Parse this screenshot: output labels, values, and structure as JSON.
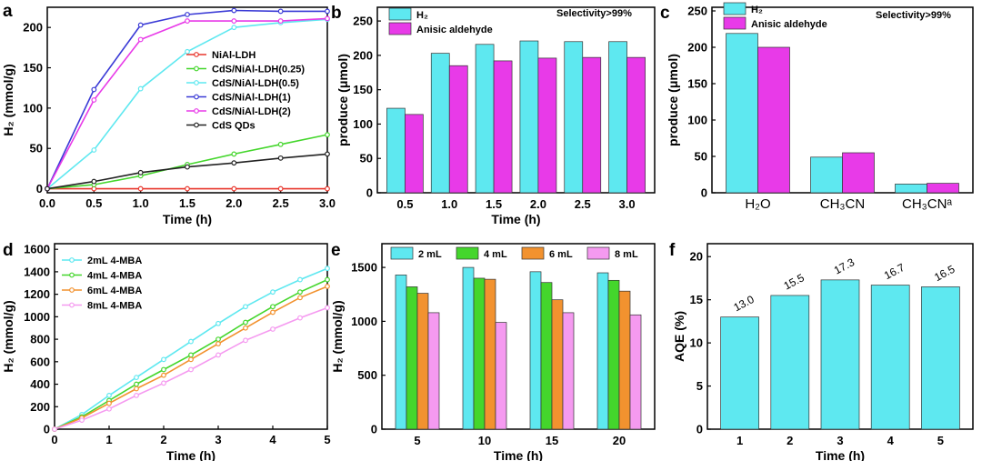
{
  "panels": {
    "a": {
      "label": "a"
    },
    "b": {
      "label": "b"
    },
    "c": {
      "label": "c"
    },
    "d": {
      "label": "d"
    },
    "e": {
      "label": "e"
    },
    "f": {
      "label": "f"
    }
  },
  "colors": {
    "red": "#e8372d",
    "green": "#44d62c",
    "cyan": "#5ee8f0",
    "blue": "#3a3ad6",
    "magenta": "#e83ae8",
    "black": "#222222",
    "orange": "#f2922f",
    "pink": "#f59af0"
  },
  "chart_data": [
    {
      "id": "a",
      "type": "line",
      "xlabel": "Time (h)",
      "ylabel": "H₂ (mmol/g)",
      "xlim": [
        0,
        3
      ],
      "ylim": [
        -5,
        225
      ],
      "xticks": [
        "0.0",
        "0.5",
        "1.0",
        "1.5",
        "2.0",
        "2.5",
        "3.0"
      ],
      "yticks": [
        "0",
        "50",
        "100",
        "150",
        "200"
      ],
      "x": [
        0,
        0.5,
        1.0,
        1.5,
        2.0,
        2.5,
        3.0
      ],
      "series": [
        {
          "name": "NiAl-LDH",
          "color": "#e8372d",
          "values": [
            0,
            0,
            0,
            0,
            0,
            0,
            0
          ]
        },
        {
          "name": "CdS/NiAl-LDH(0.25)",
          "color": "#44d62c",
          "values": [
            0,
            5,
            16,
            30,
            43,
            55,
            67
          ]
        },
        {
          "name": "CdS/NiAl-LDH(0.5)",
          "color": "#5ee8f0",
          "values": [
            0,
            48,
            124,
            170,
            200,
            206,
            210
          ]
        },
        {
          "name": "CdS/NiAl-LDH(1)",
          "color": "#3a3ad6",
          "values": [
            0,
            123,
            203,
            216,
            221,
            220,
            220
          ]
        },
        {
          "name": "CdS/NiAl-LDH(2)",
          "color": "#e83ae8",
          "values": [
            0,
            110,
            185,
            208,
            208,
            208,
            211
          ]
        },
        {
          "name": "CdS QDs",
          "color": "#222222",
          "values": [
            0,
            9,
            20,
            27,
            32,
            38,
            43
          ]
        }
      ]
    },
    {
      "id": "b",
      "type": "bar",
      "title": "Selectivity>99%",
      "xlabel": "Time (h)",
      "ylabel": "produce (μmol)",
      "ylim": [
        0,
        270
      ],
      "yticks": [
        "0",
        "50",
        "100",
        "150",
        "200",
        "250"
      ],
      "categories": [
        "0.5",
        "1.0",
        "1.5",
        "2.0",
        "2.5",
        "3.0"
      ],
      "series": [
        {
          "name": "H₂",
          "color": "#5ee8f0",
          "values": [
            123,
            203,
            216,
            221,
            220,
            220
          ]
        },
        {
          "name": "Anisic aldehyde",
          "color": "#e83ae8",
          "values": [
            114,
            185,
            192,
            196,
            197,
            197
          ]
        }
      ]
    },
    {
      "id": "c",
      "type": "bar",
      "title": "Selectivity>99%",
      "xlabel": "",
      "ylabel": "produce (μmol)",
      "ylim": [
        0,
        255
      ],
      "yticks": [
        "0",
        "50",
        "100",
        "150",
        "200",
        "250"
      ],
      "categories": [
        "H₂O",
        "CH₃CN",
        "CH₃CNᵃ"
      ],
      "series": [
        {
          "name": "H₂",
          "color": "#5ee8f0",
          "values": [
            219,
            49,
            12
          ]
        },
        {
          "name": "Anisic aldehyde",
          "color": "#e83ae8",
          "values": [
            200,
            55,
            13
          ]
        }
      ]
    },
    {
      "id": "d",
      "type": "line",
      "xlabel": "Time (h)",
      "ylabel": "H₂ (mmol/g)",
      "xlim": [
        0,
        5
      ],
      "ylim": [
        0,
        1650
      ],
      "xticks": [
        "0",
        "1",
        "2",
        "3",
        "4",
        "5"
      ],
      "yticks": [
        "0",
        "200",
        "400",
        "600",
        "800",
        "1000",
        "1200",
        "1400",
        "1600"
      ],
      "x": [
        0,
        0.5,
        1,
        1.5,
        2,
        2.5,
        3,
        3.5,
        4,
        4.5,
        5
      ],
      "series": [
        {
          "name": "2mL 4-MBA",
          "color": "#5ee8f0",
          "values": [
            0,
            130,
            300,
            460,
            620,
            780,
            940,
            1090,
            1220,
            1330,
            1430
          ]
        },
        {
          "name": "4mL 4-MBA",
          "color": "#44d62c",
          "values": [
            0,
            110,
            255,
            400,
            530,
            660,
            800,
            950,
            1090,
            1220,
            1330
          ]
        },
        {
          "name": "6mL 4-MBA",
          "color": "#f2922f",
          "values": [
            0,
            100,
            230,
            360,
            480,
            620,
            760,
            900,
            1040,
            1170,
            1270
          ]
        },
        {
          "name": "8mL 4-MBA",
          "color": "#f59af0",
          "values": [
            0,
            80,
            180,
            300,
            410,
            530,
            660,
            790,
            890,
            990,
            1080
          ]
        }
      ]
    },
    {
      "id": "e",
      "type": "bar",
      "xlabel": "Time (h)",
      "ylabel": "H₂ (mmol/g)",
      "ylim": [
        0,
        1720
      ],
      "yticks": [
        "0",
        "500",
        "1000",
        "1500"
      ],
      "categories": [
        "5",
        "10",
        "15",
        "20"
      ],
      "series": [
        {
          "name": "2 mL",
          "color": "#5ee8f0",
          "values": [
            1430,
            1500,
            1460,
            1450
          ]
        },
        {
          "name": "4 mL",
          "color": "#44d62c",
          "values": [
            1320,
            1400,
            1360,
            1380
          ]
        },
        {
          "name": "6 mL",
          "color": "#f2922f",
          "values": [
            1260,
            1390,
            1200,
            1280
          ]
        },
        {
          "name": "8 mL",
          "color": "#f59af0",
          "values": [
            1080,
            990,
            1080,
            1060
          ]
        }
      ]
    },
    {
      "id": "f",
      "type": "bar",
      "xlabel": "Time (h)",
      "ylabel": "AQE (%)",
      "ylim": [
        0,
        21.5
      ],
      "yticks": [
        "0",
        "5",
        "10",
        "15",
        "20"
      ],
      "categories": [
        "1",
        "2",
        "3",
        "4",
        "5"
      ],
      "series": [
        {
          "name": "AQE",
          "color": "#5ee8f0",
          "values": [
            13.0,
            15.5,
            17.3,
            16.7,
            16.5
          ]
        }
      ],
      "data_labels": [
        "13.0",
        "15.5",
        "17.3",
        "16.7",
        "16.5"
      ]
    }
  ]
}
